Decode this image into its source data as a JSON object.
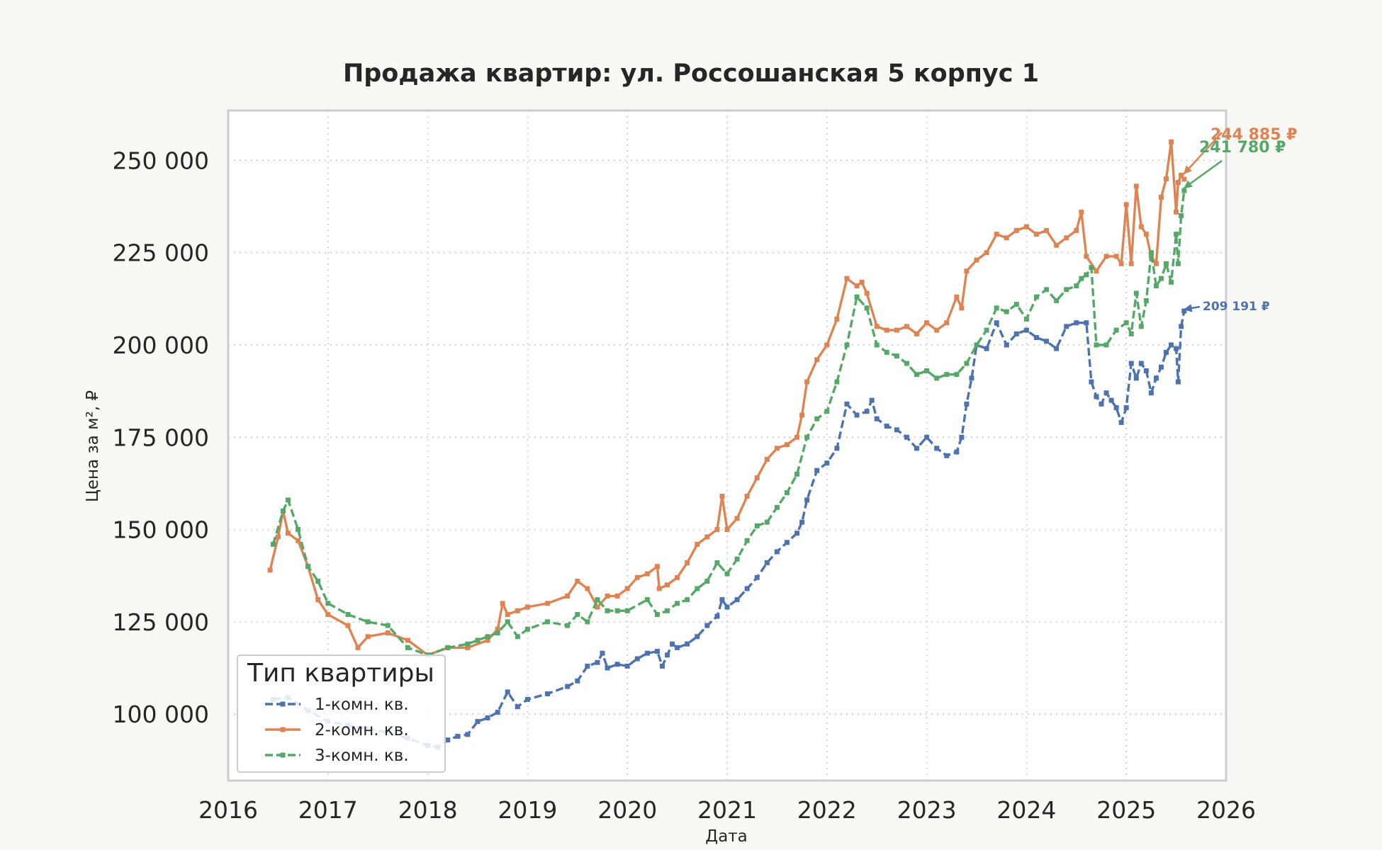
{
  "chart_data": {
    "type": "line",
    "title": "Продажа квартир: ул. Россошанская 5 корпус 1",
    "xlabel": "Дата",
    "ylabel": "Цена за м², ₽",
    "xlim": [
      2016,
      2026
    ],
    "ylim": [
      82000,
      263500
    ],
    "x_ticks": [
      "2016",
      "2017",
      "2018",
      "2019",
      "2020",
      "2021",
      "2022",
      "2023",
      "2024",
      "2025",
      "2026"
    ],
    "y_ticks": [
      {
        "value": 100000,
        "label": "100 000"
      },
      {
        "value": 125000,
        "label": "125 000"
      },
      {
        "value": 150000,
        "label": "150 000"
      },
      {
        "value": 175000,
        "label": "175 000"
      },
      {
        "value": 200000,
        "label": "200 000"
      },
      {
        "value": 225000,
        "label": "225 000"
      },
      {
        "value": 250000,
        "label": "250 000"
      }
    ],
    "grid": true,
    "legend": {
      "title": "Тип квартиры",
      "position": "bottom-left"
    },
    "series": [
      {
        "name": "1-комн. кв.",
        "color": "#4c72b0",
        "dash": "dashed",
        "x": [
          2016.45,
          2016.6,
          2016.8,
          2017.0,
          2017.2,
          2017.4,
          2017.6,
          2017.8,
          2018.0,
          2018.1,
          2018.2,
          2018.3,
          2018.4,
          2018.5,
          2018.6,
          2018.7,
          2018.8,
          2018.9,
          2019.0,
          2019.2,
          2019.4,
          2019.5,
          2019.6,
          2019.7,
          2019.75,
          2019.8,
          2019.9,
          2020.0,
          2020.1,
          2020.2,
          2020.3,
          2020.35,
          2020.4,
          2020.45,
          2020.5,
          2020.6,
          2020.7,
          2020.8,
          2020.9,
          2020.95,
          2021.0,
          2021.1,
          2021.2,
          2021.3,
          2021.4,
          2021.5,
          2021.6,
          2021.7,
          2021.75,
          2021.8,
          2021.9,
          2022.0,
          2022.1,
          2022.2,
          2022.3,
          2022.4,
          2022.45,
          2022.5,
          2022.6,
          2022.7,
          2022.8,
          2022.9,
          2023.0,
          2023.1,
          2023.2,
          2023.3,
          2023.35,
          2023.4,
          2023.45,
          2023.5,
          2023.6,
          2023.7,
          2023.8,
          2023.9,
          2024.0,
          2024.1,
          2024.2,
          2024.3,
          2024.4,
          2024.5,
          2024.6,
          2024.65,
          2024.7,
          2024.75,
          2024.8,
          2024.85,
          2024.9,
          2024.95,
          2025.0,
          2025.05,
          2025.1,
          2025.15,
          2025.2,
          2025.25,
          2025.3,
          2025.35,
          2025.4,
          2025.45,
          2025.5,
          2025.52,
          2025.55,
          2025.58
        ],
        "y": [
          104000,
          104500,
          101000,
          98000,
          97000,
          96000,
          95000,
          93500,
          91500,
          91000,
          93000,
          94000,
          94500,
          98000,
          99000,
          100500,
          106000,
          102000,
          104000,
          105500,
          107500,
          109000,
          113000,
          114000,
          116500,
          112500,
          113500,
          113000,
          115000,
          116500,
          117000,
          113000,
          116000,
          119000,
          118000,
          119000,
          121000,
          124000,
          126500,
          131000,
          129000,
          131000,
          134000,
          137000,
          141000,
          144000,
          146500,
          149000,
          152000,
          158000,
          166000,
          168000,
          172000,
          184000,
          181000,
          182000,
          185000,
          180000,
          178000,
          177000,
          175000,
          172000,
          175000,
          172000,
          170000,
          171000,
          175000,
          184000,
          191000,
          200000,
          199000,
          206000,
          200000,
          203000,
          204000,
          202000,
          201000,
          199000,
          205000,
          206000,
          206000,
          190000,
          186000,
          184000,
          187000,
          185000,
          183000,
          179000,
          183000,
          195000,
          191000,
          195000,
          193000,
          187000,
          191000,
          194000,
          198000,
          200000,
          199000,
          190000,
          205000,
          209191
        ]
      },
      {
        "name": "2-комн. кв.",
        "color": "#dd8452",
        "dash": "solid",
        "x": [
          2016.42,
          2016.5,
          2016.55,
          2016.6,
          2016.7,
          2016.8,
          2016.9,
          2017.0,
          2017.2,
          2017.3,
          2017.4,
          2017.6,
          2017.8,
          2018.0,
          2018.2,
          2018.4,
          2018.6,
          2018.7,
          2018.75,
          2018.8,
          2018.9,
          2019.0,
          2019.2,
          2019.4,
          2019.5,
          2019.6,
          2019.7,
          2019.8,
          2019.9,
          2020.0,
          2020.1,
          2020.2,
          2020.3,
          2020.32,
          2020.4,
          2020.5,
          2020.6,
          2020.7,
          2020.8,
          2020.9,
          2020.95,
          2021.0,
          2021.1,
          2021.2,
          2021.3,
          2021.4,
          2021.5,
          2021.6,
          2021.7,
          2021.75,
          2021.8,
          2021.9,
          2022.0,
          2022.1,
          2022.2,
          2022.3,
          2022.35,
          2022.4,
          2022.5,
          2022.6,
          2022.7,
          2022.8,
          2022.9,
          2023.0,
          2023.1,
          2023.2,
          2023.3,
          2023.35,
          2023.4,
          2023.5,
          2023.6,
          2023.7,
          2023.8,
          2023.9,
          2024.0,
          2024.1,
          2024.2,
          2024.3,
          2024.4,
          2024.5,
          2024.55,
          2024.6,
          2024.7,
          2024.8,
          2024.9,
          2024.95,
          2025.0,
          2025.05,
          2025.1,
          2025.15,
          2025.2,
          2025.25,
          2025.3,
          2025.35,
          2025.4,
          2025.45,
          2025.5,
          2025.52,
          2025.55,
          2025.58
        ],
        "y": [
          139000,
          148000,
          155000,
          149000,
          147000,
          140000,
          131000,
          127000,
          124000,
          118000,
          121000,
          122000,
          120000,
          116000,
          118000,
          118000,
          120000,
          123000,
          130000,
          127000,
          128000,
          129000,
          130000,
          132000,
          136000,
          134000,
          129000,
          132000,
          132000,
          134000,
          137000,
          138000,
          140000,
          134000,
          135000,
          137000,
          141000,
          146000,
          148000,
          150000,
          159000,
          150000,
          153000,
          159000,
          164000,
          169000,
          172000,
          173000,
          175000,
          181000,
          190000,
          196000,
          200000,
          207000,
          218000,
          216000,
          217000,
          214000,
          205000,
          204000,
          204000,
          205000,
          203000,
          206000,
          204000,
          206000,
          213000,
          210000,
          220000,
          223000,
          225000,
          230000,
          229000,
          231000,
          232000,
          230000,
          231000,
          227000,
          229000,
          231000,
          236000,
          224000,
          220000,
          224000,
          224000,
          222000,
          238000,
          222000,
          243000,
          232000,
          230000,
          224000,
          222000,
          240000,
          245000,
          255000,
          236000,
          244000,
          246000,
          244885
        ]
      },
      {
        "name": "3-комн. кв.",
        "color": "#55a868",
        "dash": "dashed",
        "x": [
          2016.45,
          2016.55,
          2016.6,
          2016.7,
          2016.8,
          2016.9,
          2017.0,
          2017.2,
          2017.4,
          2017.6,
          2017.8,
          2018.0,
          2018.2,
          2018.4,
          2018.5,
          2018.6,
          2018.7,
          2018.8,
          2018.9,
          2019.0,
          2019.2,
          2019.4,
          2019.5,
          2019.6,
          2019.7,
          2019.8,
          2019.9,
          2020.0,
          2020.2,
          2020.3,
          2020.4,
          2020.5,
          2020.6,
          2020.7,
          2020.8,
          2020.9,
          2021.0,
          2021.1,
          2021.2,
          2021.3,
          2021.4,
          2021.5,
          2021.6,
          2021.7,
          2021.8,
          2021.9,
          2022.0,
          2022.1,
          2022.2,
          2022.3,
          2022.4,
          2022.5,
          2022.6,
          2022.7,
          2022.8,
          2022.9,
          2023.0,
          2023.1,
          2023.2,
          2023.3,
          2023.4,
          2023.5,
          2023.6,
          2023.7,
          2023.8,
          2023.9,
          2024.0,
          2024.1,
          2024.2,
          2024.3,
          2024.4,
          2024.5,
          2024.55,
          2024.6,
          2024.65,
          2024.7,
          2024.8,
          2024.9,
          2025.0,
          2025.05,
          2025.1,
          2025.15,
          2025.2,
          2025.25,
          2025.3,
          2025.35,
          2025.4,
          2025.45,
          2025.5,
          2025.52,
          2025.55,
          2025.58
        ],
        "y": [
          146000,
          155000,
          158000,
          150000,
          140000,
          136000,
          130000,
          127000,
          125000,
          124000,
          118000,
          116000,
          118000,
          119000,
          120000,
          121000,
          122000,
          125000,
          121000,
          123000,
          125000,
          124000,
          127000,
          125000,
          131000,
          128000,
          128000,
          128000,
          131000,
          127000,
          128000,
          130000,
          131000,
          134000,
          136000,
          141000,
          138000,
          142000,
          147000,
          151000,
          152000,
          156000,
          160000,
          165000,
          175000,
          180000,
          182000,
          190000,
          200000,
          213000,
          210000,
          200000,
          198000,
          197000,
          195000,
          192000,
          193000,
          191000,
          192000,
          192000,
          195000,
          200000,
          204000,
          210000,
          209000,
          211000,
          207000,
          213000,
          215000,
          212000,
          215000,
          216000,
          218000,
          219000,
          221000,
          200000,
          200000,
          204000,
          206000,
          203000,
          214000,
          205000,
          212000,
          225000,
          216000,
          218000,
          222000,
          217000,
          230000,
          222000,
          235000,
          241780
        ]
      }
    ],
    "annotations": [
      {
        "series": 1,
        "text": "244 885 ₽"
      },
      {
        "series": 2,
        "text": "241 780 ₽"
      },
      {
        "series": 0,
        "text": "209 191 ₽"
      }
    ]
  }
}
